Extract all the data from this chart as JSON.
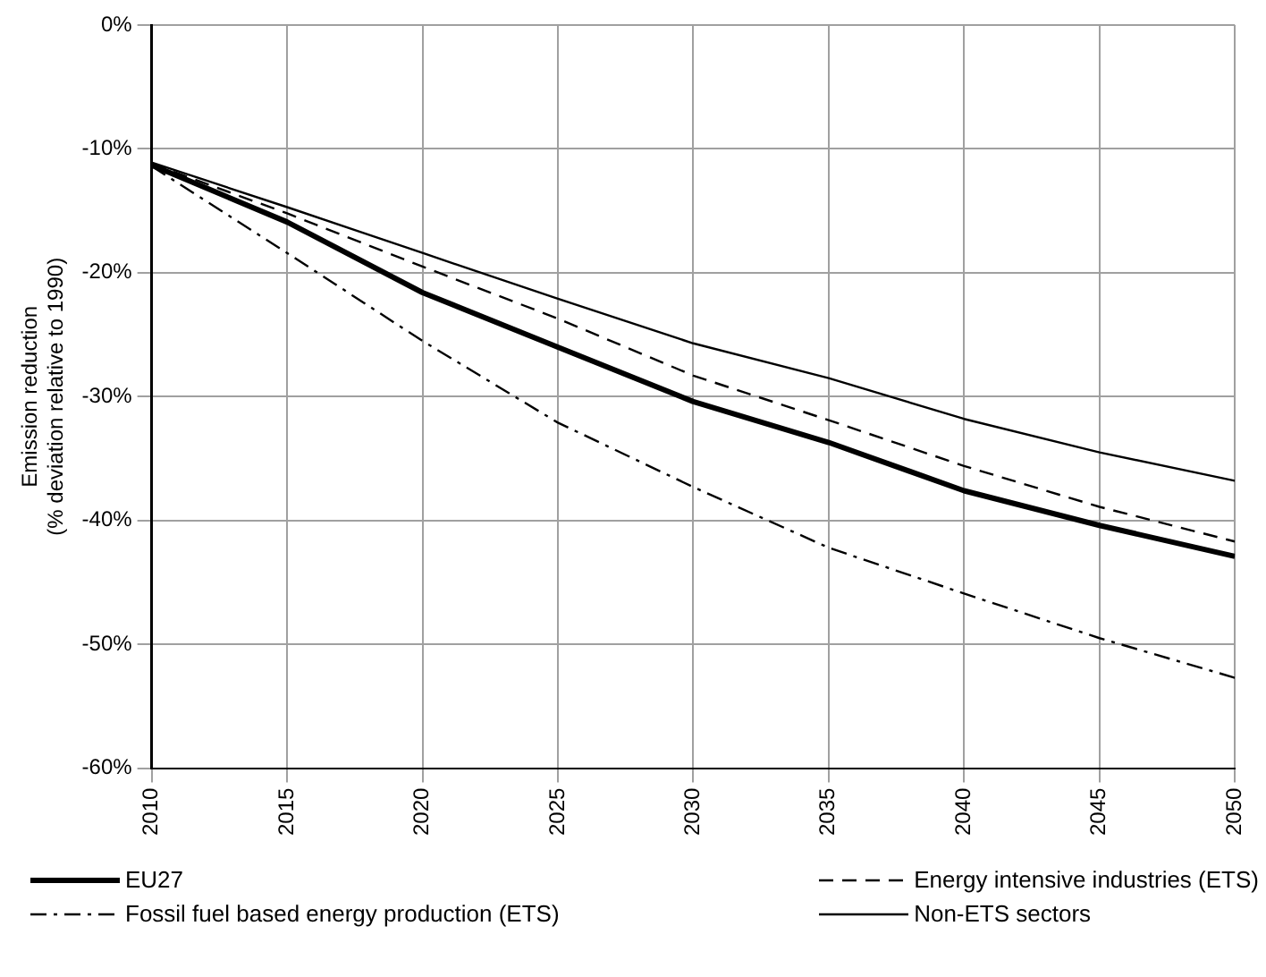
{
  "chart_data": {
    "type": "line",
    "ylabel": "Emission reduction\n(% deviation relative to 1990)",
    "x": [
      2010,
      2015,
      2020,
      2025,
      2030,
      2035,
      2040,
      2045,
      2050
    ],
    "series": [
      {
        "name": "EU27",
        "color": "#000000",
        "line_style": "solid",
        "values": [
          -11.3,
          -15.9,
          -21.6,
          -26.0,
          -30.4,
          -33.7,
          -37.6,
          -40.4,
          -42.9
        ]
      },
      {
        "name": "Energy intensive industries (ETS)",
        "color": "#000000",
        "line_style": "dashed",
        "values": [
          -11.2,
          -15.2,
          -19.5,
          -23.7,
          -28.3,
          -31.9,
          -35.6,
          -38.9,
          -41.7
        ]
      },
      {
        "name": "Fossil fuel based energy production (ETS)",
        "color": "#000000",
        "line_style": "dashdot",
        "values": [
          -11.4,
          -18.4,
          -25.5,
          -32.1,
          -37.3,
          -42.2,
          -45.9,
          -49.5,
          -52.7
        ]
      },
      {
        "name": "Non-ETS sectors",
        "color": "#000000",
        "line_style": "solid",
        "values": [
          -11.1,
          -14.7,
          -18.4,
          -22.1,
          -25.7,
          -28.5,
          -31.8,
          -34.5,
          -36.8
        ]
      }
    ],
    "xlim": [
      2010,
      2050
    ],
    "xticks": [
      2010,
      2015,
      2020,
      2025,
      2030,
      2035,
      2040,
      2045,
      2050
    ],
    "ylim": [
      -60,
      0
    ],
    "yticks": [
      {
        "value": 0,
        "label": "0%"
      },
      {
        "value": -10,
        "label": "-10%"
      },
      {
        "value": -20,
        "label": "-20%"
      },
      {
        "value": -30,
        "label": "-30%"
      },
      {
        "value": -40,
        "label": "-40%"
      },
      {
        "value": -50,
        "label": "-50%"
      },
      {
        "value": -60,
        "label": "-60%"
      }
    ],
    "grid": true,
    "legend": "bottom",
    "marker": "none"
  }
}
